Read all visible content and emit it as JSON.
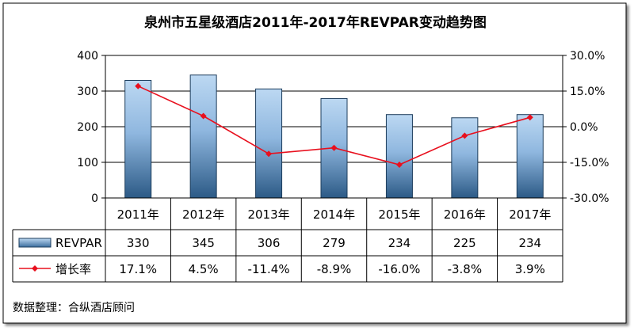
{
  "chart_data": {
    "type": "bar",
    "title": "泉州市五星级酒店2011年-2017年REVPAR变动趋势图",
    "categories": [
      "2011年",
      "2012年",
      "2013年",
      "2014年",
      "2015年",
      "2016年",
      "2017年"
    ],
    "series": [
      {
        "name": "REVPAR",
        "type": "bar",
        "axis": "left",
        "values": [
          330,
          345,
          306,
          279,
          234,
          225,
          234
        ]
      },
      {
        "name": "增长率",
        "type": "line",
        "axis": "right",
        "values": [
          17.1,
          4.5,
          -11.4,
          -8.9,
          -16.0,
          -3.8,
          3.9
        ]
      }
    ],
    "table_rows": [
      {
        "label": "REVPAR",
        "cells": [
          "330",
          "345",
          "306",
          "279",
          "234",
          "225",
          "234"
        ]
      },
      {
        "label": "增长率",
        "cells": [
          "17.1%",
          "4.5%",
          "-11.4%",
          "-8.9%",
          "-16.0%",
          "-3.8%",
          "3.9%"
        ]
      }
    ],
    "y_left": {
      "min": 0,
      "max": 400,
      "ticks": [
        "0",
        "100",
        "200",
        "300",
        "400"
      ]
    },
    "y_right": {
      "min": -30,
      "max": 30,
      "ticks": [
        "-30.0%",
        "-15.0%",
        "0.0%",
        "15.0%",
        "30.0%"
      ]
    },
    "grid": true,
    "legend": "data-table",
    "source": "数据整理：合纵酒店顾问",
    "colors": {
      "bar_top": "#bcd8f2",
      "bar_bottom": "#2c5a86",
      "line": "#e8101e",
      "grid": "#000000"
    }
  }
}
